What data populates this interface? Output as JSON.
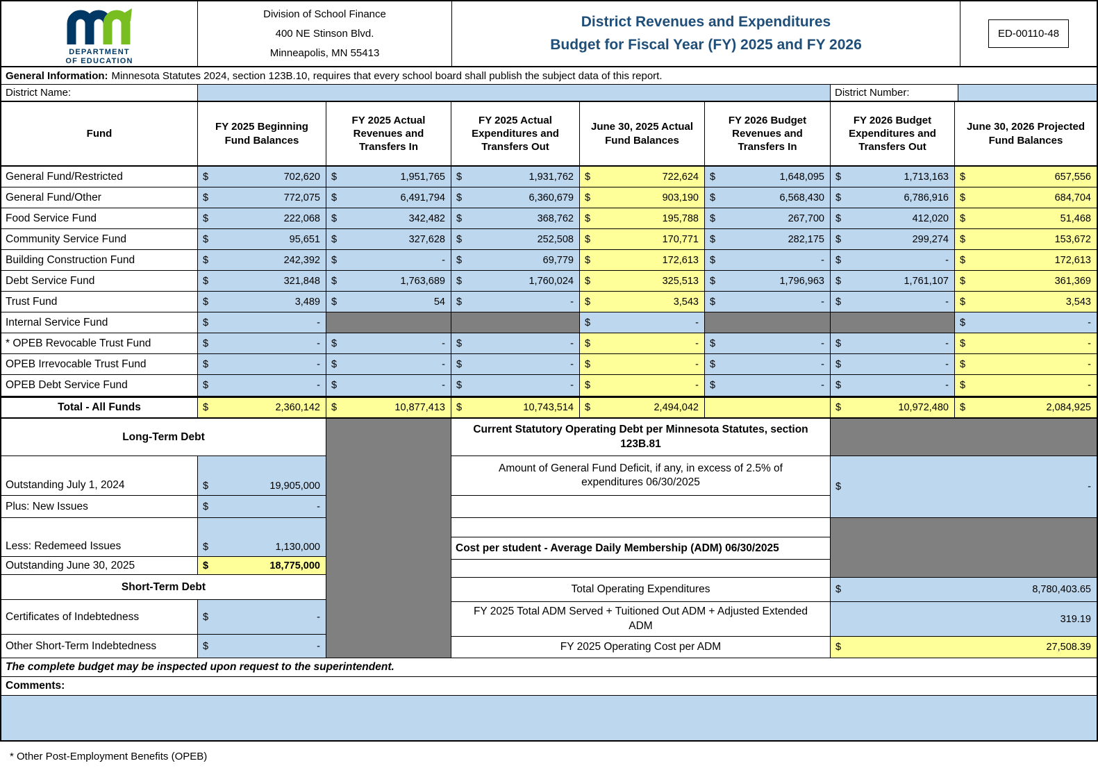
{
  "currency_symbol": "$",
  "colors": {
    "blue": "#BDD7EE",
    "yellow": "#FFFF99",
    "gray": "#808080",
    "title_blue": "#1F4E79",
    "logo_blue": "#003865",
    "logo_green": "#78BE21"
  },
  "header": {
    "logo_line1": "DEPARTMENT",
    "logo_line2": "OF EDUCATION",
    "address_lines": [
      "Division of School Finance",
      "400 NE Stinson Blvd.",
      "Minneapolis, MN 55413"
    ],
    "title_lines": [
      "District Revenues and Expenditures",
      "Budget for Fiscal Year (FY) 2025 and FY 2026"
    ],
    "form_number": "ED-00110-48"
  },
  "general_info": {
    "label": "General Information:",
    "text": "Minnesota Statutes 2024, section 123B.10, requires that every school board shall publish the subject data of this report."
  },
  "district": {
    "name_label": "District Name:",
    "name_value": "",
    "number_label": "District Number:",
    "number_value": ""
  },
  "fund_table": {
    "columns": [
      "Fund",
      "FY 2025 Beginning Fund Balances",
      "FY 2025 Actual Revenues and Transfers In",
      "FY 2025 Actual Expenditures and Transfers Out",
      "June 30, 2025 Actual Fund Balances",
      "FY 2026 Budget Revenues and Transfers In",
      "FY 2026 Budget Expenditures and Transfers Out",
      "June 30, 2026 Projected Fund Balances"
    ],
    "rows": [
      {
        "fund": "General Fund/Restricted",
        "values": [
          "702,620",
          "1,951,765",
          "1,931,762",
          "722,624",
          "1,648,095",
          "1,713,163",
          "657,556"
        ],
        "bgs": [
          "blue",
          "blue",
          "blue",
          "yellow",
          "blue",
          "blue",
          "yellow"
        ]
      },
      {
        "fund": "General Fund/Other",
        "values": [
          "772,075",
          "6,491,794",
          "6,360,679",
          "903,190",
          "6,568,430",
          "6,786,916",
          "684,704"
        ],
        "bgs": [
          "blue",
          "blue",
          "blue",
          "yellow",
          "blue",
          "blue",
          "yellow"
        ]
      },
      {
        "fund": "Food Service Fund",
        "values": [
          "222,068",
          "342,482",
          "368,762",
          "195,788",
          "267,700",
          "412,020",
          "51,468"
        ],
        "bgs": [
          "blue",
          "blue",
          "blue",
          "yellow",
          "blue",
          "blue",
          "yellow"
        ]
      },
      {
        "fund": "Community Service Fund",
        "values": [
          "95,651",
          "327,628",
          "252,508",
          "170,771",
          "282,175",
          "299,274",
          "153,672"
        ],
        "bgs": [
          "blue",
          "blue",
          "blue",
          "yellow",
          "blue",
          "blue",
          "yellow"
        ]
      },
      {
        "fund": "Building Construction Fund",
        "values": [
          "242,392",
          "-",
          "69,779",
          "172,613",
          "-",
          "-",
          "172,613"
        ],
        "bgs": [
          "blue",
          "blue",
          "blue",
          "yellow",
          "blue",
          "blue",
          "yellow"
        ]
      },
      {
        "fund": "Debt Service Fund",
        "values": [
          "321,848",
          "1,763,689",
          "1,760,024",
          "325,513",
          "1,796,963",
          "1,761,107",
          "361,369"
        ],
        "bgs": [
          "blue",
          "blue",
          "blue",
          "yellow",
          "blue",
          "blue",
          "yellow"
        ]
      },
      {
        "fund": "Trust Fund",
        "values": [
          "3,489",
          "54",
          "-",
          "3,543",
          "-",
          "-",
          "3,543"
        ],
        "bgs": [
          "blue",
          "blue",
          "blue",
          "yellow",
          "blue",
          "blue",
          "yellow"
        ]
      },
      {
        "fund": "Internal Service Fund",
        "values": [
          "-",
          null,
          null,
          "-",
          null,
          null,
          "-"
        ],
        "bgs": [
          "blue",
          "gray",
          "gray",
          "blue",
          "gray",
          "gray",
          "blue"
        ]
      },
      {
        "fund": "* OPEB Revocable Trust Fund",
        "values": [
          "-",
          "-",
          "-",
          "-",
          "-",
          "-",
          "-"
        ],
        "bgs": [
          "blue",
          "blue",
          "blue",
          "yellow",
          "blue",
          "blue",
          "yellow"
        ]
      },
      {
        "fund": "OPEB Irrevocable Trust Fund",
        "values": [
          "-",
          "-",
          "-",
          "-",
          "-",
          "-",
          "-"
        ],
        "bgs": [
          "blue",
          "blue",
          "blue",
          "yellow",
          "blue",
          "blue",
          "yellow"
        ]
      },
      {
        "fund": "OPEB Debt Service Fund",
        "values": [
          "-",
          "-",
          "-",
          "-",
          "-",
          "-",
          "-"
        ],
        "bgs": [
          "blue",
          "blue",
          "blue",
          "yellow",
          "blue",
          "blue",
          "yellow"
        ]
      }
    ],
    "total": {
      "fund": "Total - All Funds",
      "values": [
        "2,360,142",
        "10,877,413",
        "10,743,514",
        "2,494,042",
        null,
        "10,972,480",
        "2,084,925"
      ],
      "bgs": [
        "yellow",
        "yellow",
        "yellow",
        "yellow",
        "yellow",
        "yellow",
        "yellow"
      ]
    }
  },
  "long_term_debt": {
    "title": "Long-Term Debt",
    "rows": [
      {
        "label": "Outstanding July 1, 2024",
        "value": "19,905,000"
      },
      {
        "label": "Plus: New Issues",
        "value": "-"
      },
      {
        "label": "Less: Redemeed Issues",
        "value": "1,130,000"
      },
      {
        "label": "Outstanding June 30, 2025",
        "value": "18,775,000"
      }
    ]
  },
  "short_term_debt": {
    "title": "Short-Term Debt",
    "rows": [
      {
        "label": "Certificates of Indebtedness",
        "value": "-"
      },
      {
        "label": "Other Short-Term Indebtedness",
        "value": "-"
      }
    ]
  },
  "statutory_debt": {
    "title": "Current Statutory Operating Debt per Minnesota Statutes, section 123B.81",
    "deficit_label": "Amount of General Fund Deficit, if any, in excess of 2.5% of expenditures 06/30/2025",
    "deficit_value": "-"
  },
  "cost_per_student": {
    "title": "Cost per student - Average Daily Membership (ADM) 06/30/2025",
    "rows": [
      {
        "label": "Total Operating Expenditures",
        "value": "8,780,403.65",
        "dollar": true
      },
      {
        "label": "FY 2025 Total ADM Served + Tuitioned Out ADM + Adjusted Extended ADM",
        "value": "319.19",
        "dollar": false
      },
      {
        "label": "FY 2025 Operating Cost per ADM",
        "value": "27,508.39",
        "dollar": true
      }
    ]
  },
  "footer": {
    "inspection_note": "The complete budget may be inspected upon request to the superintendent.",
    "comments_label": "Comments:",
    "comments_value": "",
    "opeb_note": "* Other Post-Employment Benefits (OPEB)"
  }
}
